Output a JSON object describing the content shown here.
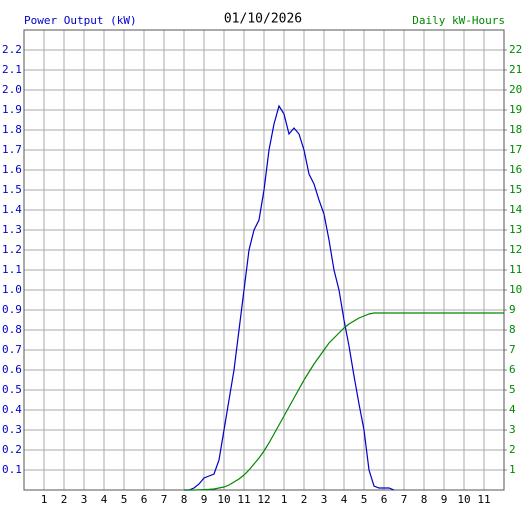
{
  "chart_data": {
    "type": "line",
    "title": "01/10/2026",
    "y_label": "Power Output (kW)",
    "y2_label": "Daily kW-Hours",
    "grid": true,
    "xlim": [
      0,
      24
    ],
    "xticks": [
      1,
      2,
      3,
      4,
      5,
      6,
      7,
      8,
      9,
      10,
      11,
      12,
      {
        "value": 13,
        "label": "1"
      },
      {
        "value": 14,
        "label": "2"
      },
      {
        "value": 15,
        "label": "3"
      },
      {
        "value": 16,
        "label": "4"
      },
      {
        "value": 17,
        "label": "5"
      },
      {
        "value": 18,
        "label": "6"
      },
      {
        "value": 19,
        "label": "7"
      },
      {
        "value": 20,
        "label": "8"
      },
      {
        "value": 21,
        "label": "9"
      },
      {
        "value": 22,
        "label": "10"
      },
      {
        "value": 23,
        "label": "11"
      }
    ],
    "ylim": [
      0,
      2.3
    ],
    "yticks": [
      0.1,
      0.2,
      0.3,
      0.4,
      0.5,
      0.6,
      0.7,
      0.8,
      0.9,
      {
        "value": 1,
        "label": "1.0"
      },
      1.1,
      1.2,
      1.3,
      1.4,
      1.5,
      1.6,
      1.7,
      1.8,
      1.9,
      {
        "value": 2,
        "label": "2.0"
      },
      2.1,
      2.2
    ],
    "y2lim": [
      0,
      23
    ],
    "y2ticks": [
      1,
      2,
      3,
      4,
      5,
      6,
      7,
      8,
      9,
      10,
      11,
      12,
      13,
      14,
      15,
      16,
      17,
      18,
      19,
      20,
      21,
      22
    ],
    "x": [
      8,
      8.25,
      8.5,
      8.75,
      9,
      9.25,
      9.5,
      9.75,
      10,
      10.25,
      10.5,
      10.75,
      11,
      11.25,
      11.5,
      11.75,
      12,
      12.25,
      12.5,
      12.75,
      13,
      13.25,
      13.5,
      13.75,
      14,
      14.25,
      14.5,
      14.75,
      15,
      15.25,
      15.5,
      15.75,
      16,
      16.25,
      16.5,
      16.75,
      17,
      17.25,
      17.5,
      17.75,
      18,
      18.25,
      18.5,
      24
    ],
    "series": [
      {
        "name": "Power Output (kW)",
        "color": "#0000cc",
        "values": [
          0,
          0,
          0.01,
          0.03,
          0.06,
          0.07,
          0.08,
          0.15,
          0.3,
          0.45,
          0.6,
          0.8,
          1.0,
          1.2,
          1.3,
          1.35,
          1.5,
          1.7,
          1.83,
          1.92,
          1.88,
          1.78,
          1.81,
          1.78,
          1.7,
          1.58,
          1.53,
          1.45,
          1.38,
          1.25,
          1.1,
          1.0,
          0.85,
          0.72,
          0.57,
          0.43,
          0.3,
          0.1,
          0.02,
          0.01,
          0.01,
          0.01,
          0,
          null
        ]
      },
      {
        "name": "Daily kW-Hours",
        "color": "#008800",
        "axis": "y2",
        "values": [
          0,
          0,
          0,
          0.01,
          0.02,
          0.03,
          0.05,
          0.1,
          0.15,
          0.25,
          0.4,
          0.55,
          0.75,
          1.0,
          1.3,
          1.6,
          1.95,
          2.35,
          2.8,
          3.25,
          3.7,
          4.15,
          4.6,
          5.05,
          5.5,
          5.9,
          6.3,
          6.65,
          7.0,
          7.35,
          7.6,
          7.85,
          8.1,
          8.3,
          8.45,
          8.6,
          8.7,
          8.8,
          8.85,
          8.85,
          8.85,
          8.85,
          8.85,
          8.85
        ]
      }
    ]
  }
}
